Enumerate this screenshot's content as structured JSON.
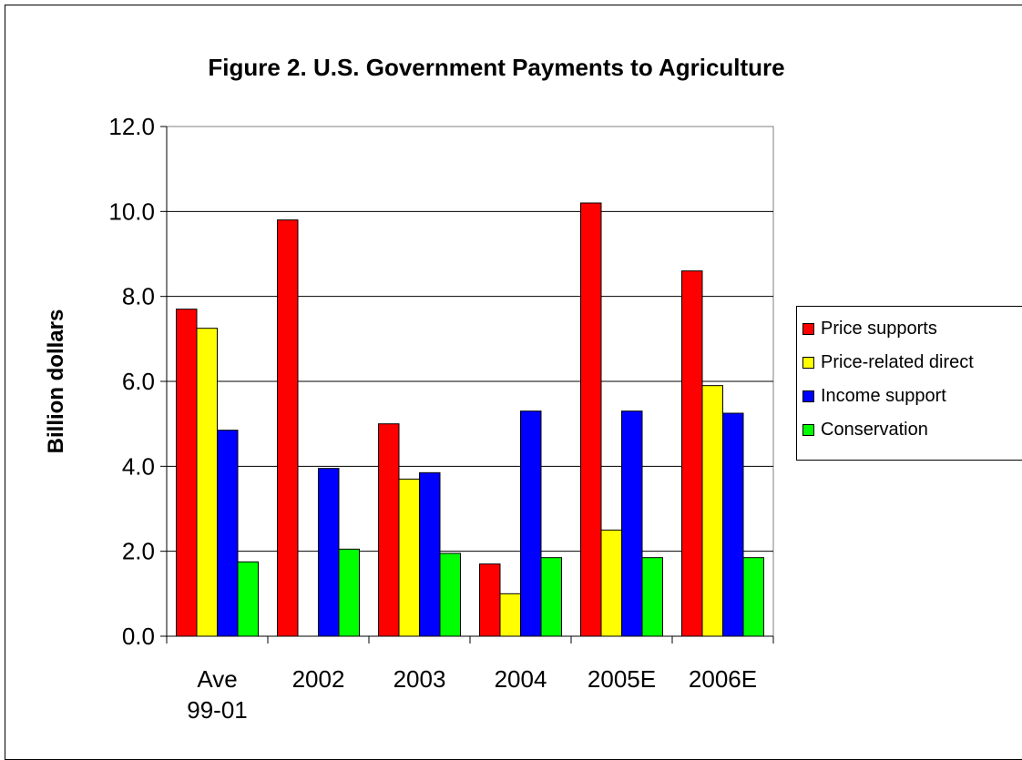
{
  "chart_data": {
    "type": "bar",
    "title": "Figure 2. U.S. Government Payments to Agriculture",
    "ylabel": "Billion dollars",
    "xlabel": "",
    "ylim": [
      0,
      12
    ],
    "yticks": [
      "0.0",
      "2.0",
      "4.0",
      "6.0",
      "8.0",
      "10.0",
      "12.0"
    ],
    "categories": [
      [
        "Ave",
        "99-01"
      ],
      [
        "2002"
      ],
      [
        "2003"
      ],
      [
        "2004"
      ],
      [
        "2005E"
      ],
      [
        "2006E"
      ]
    ],
    "grid": true,
    "legend_position": "right",
    "series": [
      {
        "name": "Price supports",
        "color": "#ff0000",
        "values": [
          7.7,
          9.8,
          5.0,
          1.7,
          10.2,
          8.6
        ]
      },
      {
        "name": "Price-related direct",
        "color": "#ffff00",
        "values": [
          7.25,
          0,
          3.7,
          1.0,
          2.5,
          5.9
        ]
      },
      {
        "name": "Income support",
        "color": "#0000ff",
        "values": [
          4.85,
          3.95,
          3.85,
          5.3,
          5.3,
          5.25
        ]
      },
      {
        "name": "Conservation",
        "color": "#00ff00",
        "values": [
          1.75,
          2.05,
          1.95,
          1.85,
          1.85,
          1.85
        ]
      }
    ]
  }
}
